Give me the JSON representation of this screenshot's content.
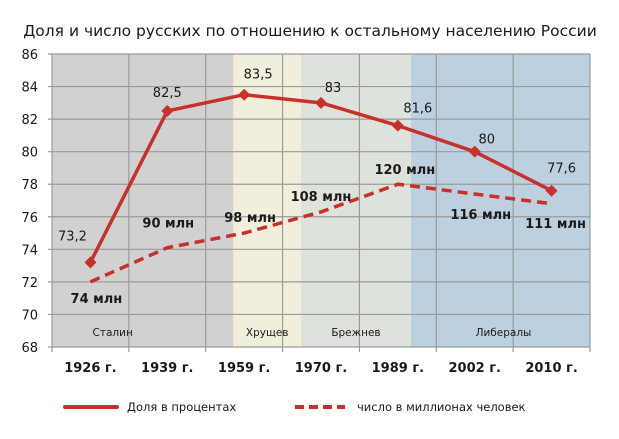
{
  "chart_data": {
    "type": "line",
    "title": "Доля и число русских по отношению к остальному населению России",
    "categories": [
      "1926 г.",
      "1939 г.",
      "1959 г.",
      "1970 г.",
      "1989 г.",
      "2002 г.",
      "2010 г."
    ],
    "ylim": [
      68,
      86
    ],
    "yticks": [
      "68",
      "70",
      "72",
      "74",
      "76",
      "78",
      "80",
      "82",
      "84",
      "86"
    ],
    "grid": true,
    "legend_position": "bottom",
    "series": [
      {
        "name": "Доля в процентах",
        "style": "solid-with-diamonds",
        "values": [
          73.2,
          82.5,
          83.5,
          83,
          81.6,
          80,
          77.6
        ],
        "labels": [
          "73,2",
          "82,5",
          "83,5",
          "83",
          "81,6",
          "80",
          "77,6"
        ]
      },
      {
        "name": "число в миллионах человек",
        "style": "dashed",
        "values_millions": [
          74,
          90,
          98,
          108,
          120,
          116,
          111
        ],
        "plotted_on_axis": [
          72,
          74.1,
          75,
          76.3,
          78,
          77.4,
          76.8
        ],
        "labels": [
          "74 млн",
          "90 млн",
          "98 млн",
          "108 млн",
          "120 млн",
          "116 млн",
          "111 млн"
        ]
      }
    ],
    "periods": [
      {
        "label": "Сталин",
        "from": 0,
        "to": 2.36,
        "color": "#d1d1d1"
      },
      {
        "label": "Хрущев",
        "from": 2.36,
        "to": 3.24,
        "color": "#f1efdc"
      },
      {
        "label": "Брежнев",
        "from": 3.24,
        "to": 4.67,
        "color": "#dde2da"
      },
      {
        "label": "Либералы",
        "from": 4.67,
        "to": 7,
        "color": "#bdd0e0"
      }
    ],
    "colors": {
      "line": "#c8302a",
      "grid": "#9a9a9a",
      "text": "#1a1a1a"
    }
  }
}
